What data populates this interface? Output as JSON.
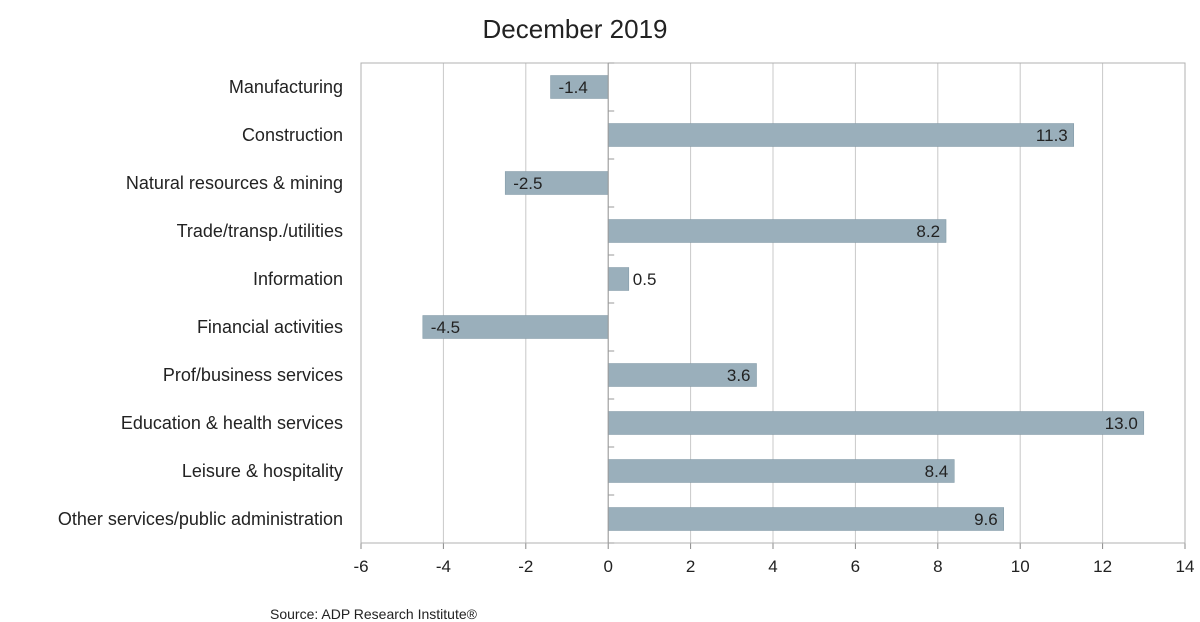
{
  "chart_data": {
    "type": "bar",
    "orientation": "horizontal",
    "title": "December 2019",
    "categories": [
      "Manufacturing",
      "Construction",
      "Natural resources & mining",
      "Trade/transp./utilities",
      "Information",
      "Financial activities",
      "Prof/business services",
      "Education & health services",
      "Leisure & hospitality",
      "Other services/public administration"
    ],
    "values": [
      -1.4,
      11.3,
      -2.5,
      8.2,
      0.5,
      -4.5,
      3.6,
      13.0,
      8.4,
      9.6
    ],
    "value_labels": [
      "-1.4",
      "11.3",
      "-2.5",
      "8.2",
      "0.5",
      "-4.5",
      "3.6",
      "13.0",
      "8.4",
      "9.6"
    ],
    "xlim": [
      -6,
      14
    ],
    "xticks": [
      "-6",
      "-4",
      "-2",
      "0",
      "2",
      "4",
      "6",
      "8",
      "10",
      "12",
      "14"
    ],
    "grid": true,
    "bar_color": "#9aafbb",
    "source": "Source: ADP Research Institute®"
  }
}
